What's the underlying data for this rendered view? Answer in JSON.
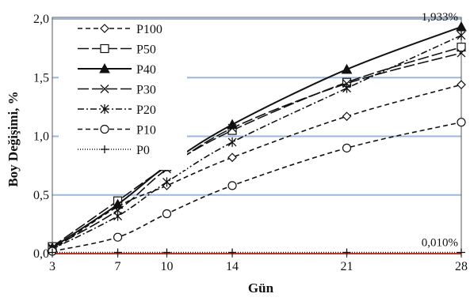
{
  "chart_data": {
    "type": "line",
    "title": "",
    "xlabel": "Gün",
    "ylabel": "Boy Değişimi, %",
    "x": [
      3,
      7,
      10,
      14,
      21,
      28
    ],
    "x_tick_labels": [
      "3",
      "7",
      "10",
      "14",
      "21",
      "28"
    ],
    "y_tick_labels": [
      "0,0",
      "0,5",
      "1,0",
      "1,5",
      "2,0"
    ],
    "xlim": [
      3,
      28
    ],
    "ylim": [
      0,
      2.0
    ],
    "grid": "horizontal",
    "grid_color": "#9bb7dd",
    "zero_line_color": "#c0392b",
    "legend_position": "top-left",
    "annotations": [
      {
        "text": "1,933%",
        "x": 28,
        "y": 1.933
      },
      {
        "text": "0,010%",
        "x": 28,
        "y": 0.01
      }
    ],
    "series": [
      {
        "name": "P100",
        "dash": "6,4",
        "marker": "diamond",
        "values": [
          0.03,
          0.4,
          0.58,
          0.82,
          1.17,
          1.44
        ]
      },
      {
        "name": "P50",
        "dash": "14,4",
        "marker": "square",
        "values": [
          0.06,
          0.45,
          0.74,
          1.05,
          1.46,
          1.76
        ]
      },
      {
        "name": "P40",
        "dash": "",
        "marker": "triangle",
        "values": [
          0.05,
          0.42,
          0.75,
          1.1,
          1.57,
          1.933
        ]
      },
      {
        "name": "P30",
        "dash": "14,4",
        "marker": "x",
        "values": [
          0.05,
          0.37,
          0.72,
          1.07,
          1.45,
          1.71
        ]
      },
      {
        "name": "P20",
        "dash": "8,3,2,3",
        "marker": "asterisk",
        "values": [
          0.04,
          0.32,
          0.61,
          0.95,
          1.41,
          1.86
        ]
      },
      {
        "name": "P10",
        "dash": "6,4",
        "marker": "circle",
        "values": [
          0.02,
          0.14,
          0.34,
          0.58,
          0.9,
          1.12
        ]
      },
      {
        "name": "P0",
        "dash": "1,2",
        "marker": "plus",
        "values": [
          0.01,
          0.01,
          0.01,
          0.01,
          0.01,
          0.01
        ]
      }
    ]
  }
}
